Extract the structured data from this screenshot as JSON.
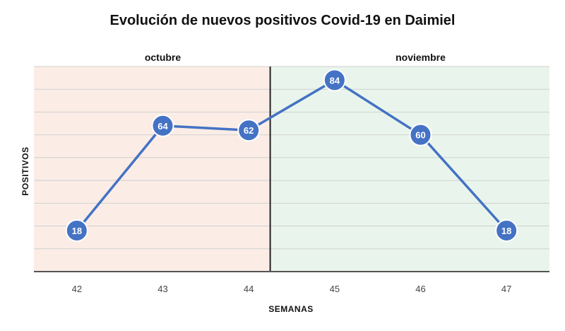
{
  "chart_data": {
    "type": "line",
    "title": "Evolución de nuevos positivos Covid-19 en Daimiel",
    "xlabel": "SEMANAS",
    "ylabel": "POSITIVOS",
    "categories": [
      "42",
      "43",
      "44",
      "45",
      "46",
      "47"
    ],
    "series": [
      {
        "values": [
          18,
          64,
          62,
          84,
          60,
          18
        ]
      }
    ],
    "ylim": [
      0,
      90
    ],
    "grid": true,
    "bands": [
      {
        "label": "octubre",
        "from": "42",
        "to": "44",
        "color": "#fbede6"
      },
      {
        "label": "noviembre",
        "from": "45",
        "to": "47",
        "color": "#e9f5ec"
      }
    ],
    "colors": {
      "line": "#4472c4",
      "marker": "#4472c4",
      "grid": "#d0d0d0",
      "divider": "#222222"
    }
  }
}
